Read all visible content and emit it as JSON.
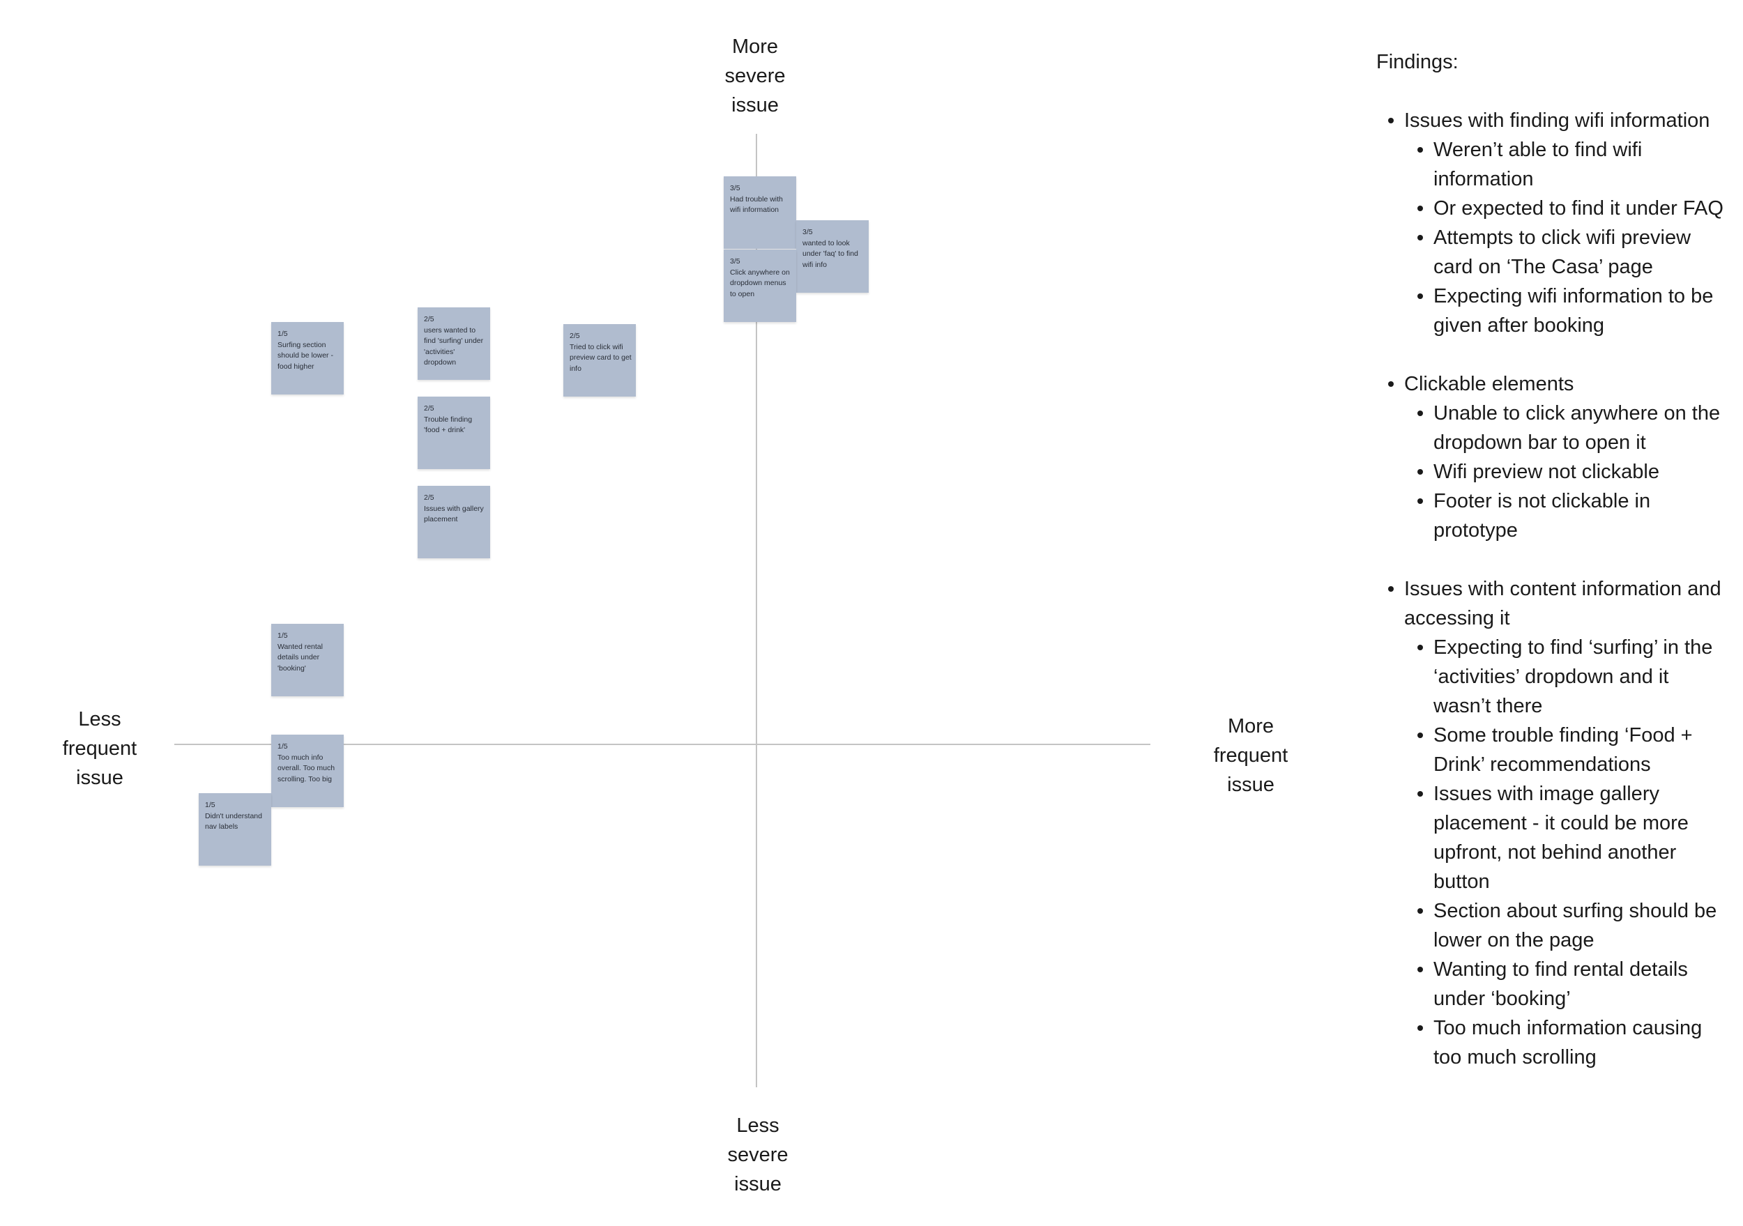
{
  "axes": {
    "top": [
      "More",
      "severe",
      "issue"
    ],
    "bottom": [
      "Less",
      "severe",
      "issue"
    ],
    "left": [
      "Less",
      "frequent",
      "issue"
    ],
    "right": [
      "More",
      "frequent",
      "issue"
    ]
  },
  "notes": [
    {
      "score": "3/5",
      "text": "Had trouble with wifi information",
      "color": "#b0bccf"
    },
    {
      "score": "3/5",
      "text": "wanted to look under 'faq' to find wifi info",
      "color": "#b0bccf"
    },
    {
      "score": "3/5",
      "text": "Click anywhere on dropdown menus to open",
      "color": "#b0bccf"
    },
    {
      "score": "1/5",
      "text": "Surfing section should be lower - food higher",
      "color": "#b0bccf"
    },
    {
      "score": "2/5",
      "text": "users wanted to find 'surfing' under 'activities' dropdown",
      "color": "#b0bccf"
    },
    {
      "score": "2/5",
      "text": "Tried to click wifi preview card to get info",
      "color": "#b0bccf"
    },
    {
      "score": "2/5",
      "text": "Trouble finding 'food + drink'",
      "color": "#b0bccf"
    },
    {
      "score": "2/5",
      "text": "Issues with gallery placement",
      "color": "#b0bccf"
    },
    {
      "score": "1/5",
      "text": "Wanted rental details under 'booking'",
      "color": "#b0bccf"
    },
    {
      "score": "1/5",
      "text": "Too much info overall. Too much scrolling. Too big",
      "color": "#b0bccf"
    },
    {
      "score": "1/5",
      "text": "Didn't understand nav labels",
      "color": "#b0bccf"
    }
  ],
  "findings": {
    "title": "Findings:",
    "groups": [
      {
        "heading": "Issues with finding wifi information",
        "items": [
          "Weren’t able to find wifi information",
          "Or expected to find it under FAQ",
          "Attempts to click wifi preview card on ‘The Casa’ page",
          "Expecting wifi information to be given after booking"
        ]
      },
      {
        "heading": "Clickable elements",
        "items": [
          "Unable to click anywhere on the dropdown bar to open it",
          "Wifi preview not clickable",
          "Footer is not clickable in prototype"
        ]
      },
      {
        "heading": "Issues with content information and accessing it",
        "items": [
          "Expecting to find ‘surfing’ in the ‘activities’ dropdown and it wasn’t there",
          "Some trouble finding ‘Food + Drink’ recommendations",
          "Issues with image gallery placement - it could be more upfront, not behind another button",
          "Section about surfing should be lower on the page",
          "Wanting to find rental details under ‘booking’",
          "Too much information causing too much scrolling"
        ]
      }
    ]
  }
}
